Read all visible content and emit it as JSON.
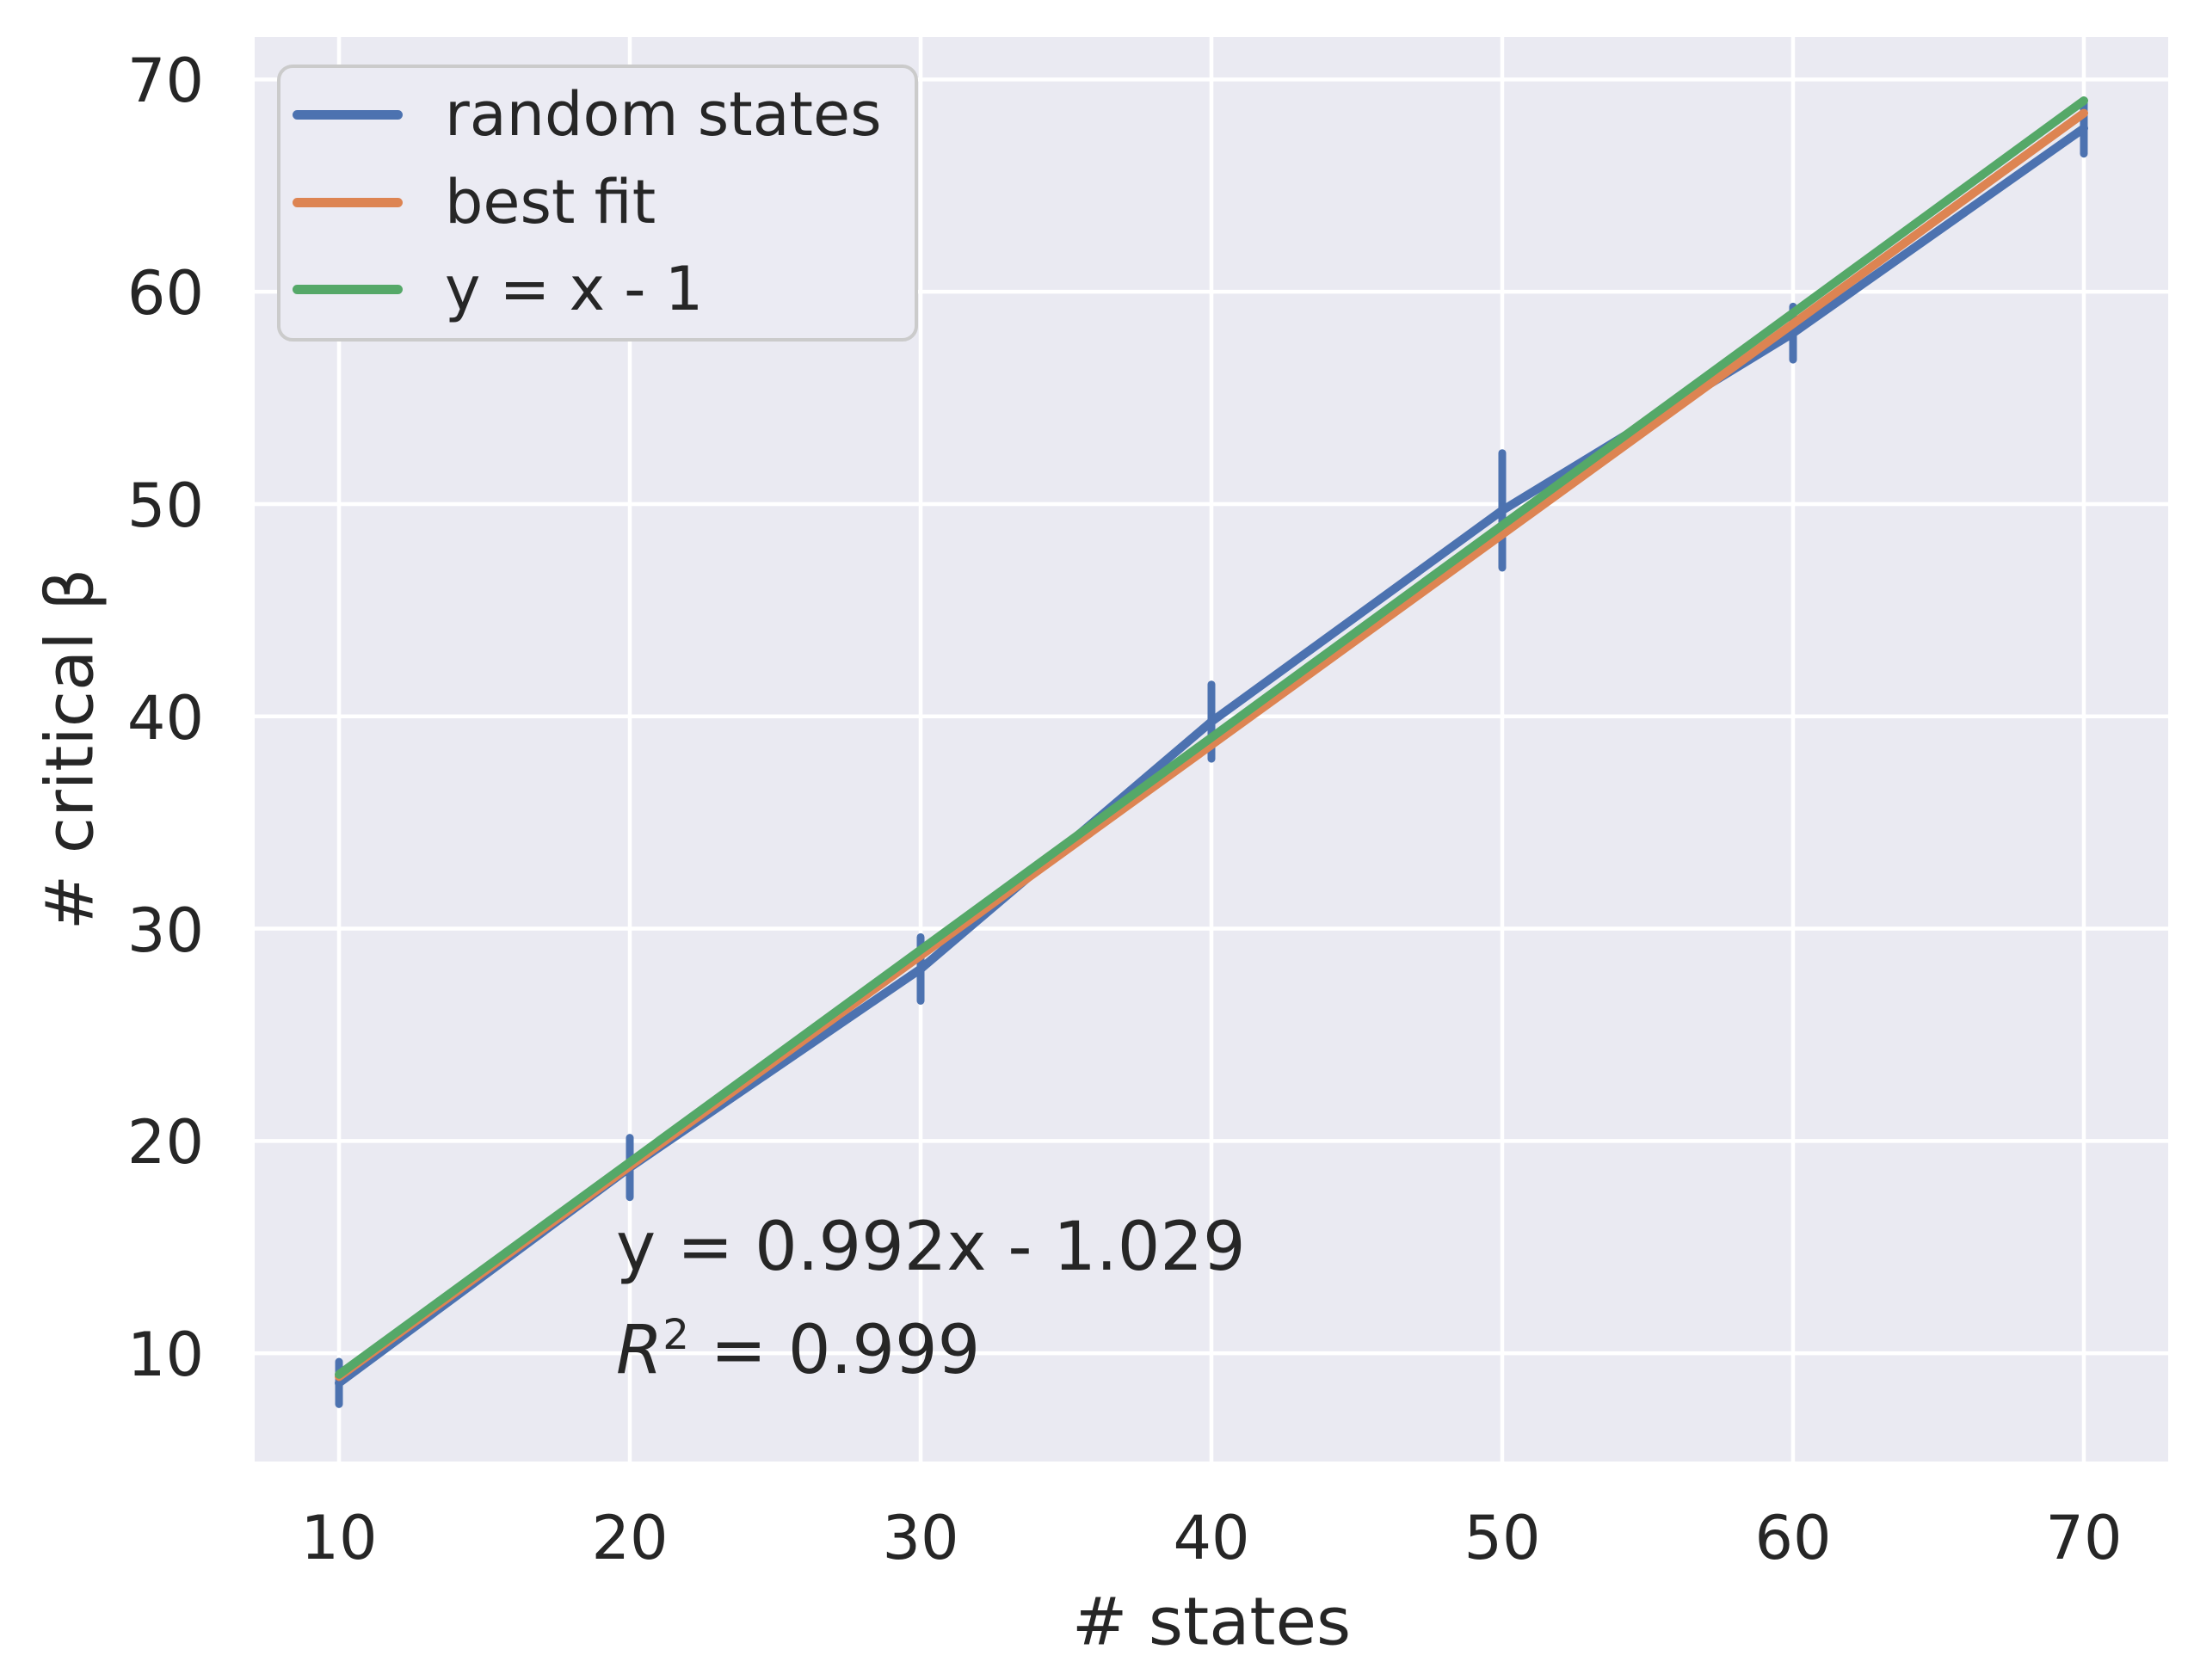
{
  "figure": {
    "background": "#ffffff",
    "plot_bg": "#eaeaf2",
    "grid_color": "#ffffff",
    "text_color": "#262626"
  },
  "chart_data": {
    "type": "line",
    "title": "",
    "xlabel": "# states",
    "ylabel": "# critical β",
    "xlim": [
      7.1,
      72.9
    ],
    "ylim": [
      4.9,
      72.0
    ],
    "xticks": [
      10,
      20,
      30,
      40,
      50,
      60,
      70
    ],
    "yticks": [
      10,
      20,
      30,
      40,
      50,
      60,
      70
    ],
    "grid": true,
    "legend": {
      "position": "upper left",
      "items": [
        {
          "label": "random states",
          "color": "#4c72b0"
        },
        {
          "label": "best fit",
          "color": "#dd8452"
        },
        {
          "label": "y = x - 1",
          "color": "#55a868"
        }
      ]
    },
    "series": [
      {
        "name": "random states",
        "color": "#4c72b0",
        "style": "errorbar-line",
        "x": [
          10,
          20,
          30,
          40,
          50,
          60,
          70
        ],
        "y": [
          8.6,
          18.75,
          28.1,
          39.75,
          49.7,
          58.05,
          67.7
        ],
        "yerr": [
          1.0,
          1.4,
          1.5,
          1.75,
          2.7,
          1.25,
          1.2
        ]
      },
      {
        "name": "best fit",
        "color": "#dd8452",
        "style": "line",
        "slope": 0.992,
        "intercept": -1.029,
        "x": [
          10,
          70
        ],
        "y": [
          8.891,
          68.411
        ]
      },
      {
        "name": "y = x - 1",
        "color": "#55a868",
        "style": "line",
        "slope": 1,
        "intercept": -1,
        "x": [
          10,
          70
        ],
        "y": [
          9,
          69
        ]
      }
    ],
    "annotations": {
      "equation": "y = 0.992x - 1.029",
      "r2_base": "R",
      "r2_sup": "2",
      "r2_rest": " = 0.999"
    }
  }
}
